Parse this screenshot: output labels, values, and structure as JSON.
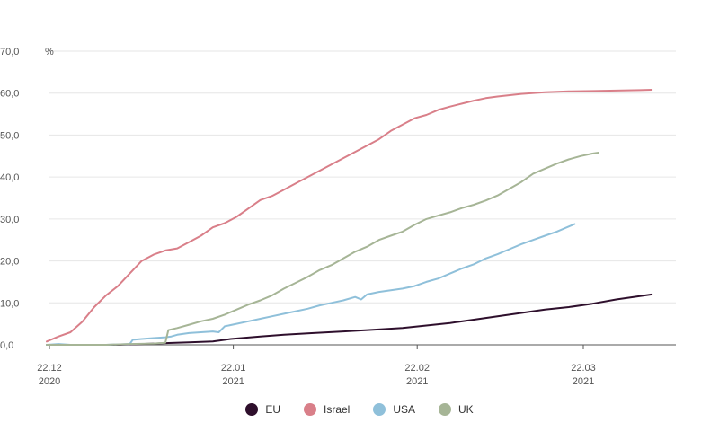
{
  "chart_data": {
    "type": "line",
    "unit_label": "%",
    "ylim": [
      0,
      70
    ],
    "yticks": [
      "0,0",
      "10,0",
      "20,0",
      "30,0",
      "40,0",
      "50,0",
      "60,0",
      "70,0"
    ],
    "xticks": [
      {
        "day": 0,
        "line1": "22.12",
        "line2": "2020"
      },
      {
        "day": 31,
        "line1": "22.01",
        "line2": "2021"
      },
      {
        "day": 62,
        "line1": "22.02",
        "line2": "2021"
      },
      {
        "day": 90,
        "line1": "22.03",
        "line2": "2021"
      }
    ],
    "xlim": [
      0,
      104
    ],
    "grid": true,
    "legend_position": "bottom-center",
    "series": [
      {
        "name": "EU",
        "color": "#2e0f2c",
        "points": [
          [
            0,
            0
          ],
          [
            4,
            0
          ],
          [
            8,
            0
          ],
          [
            12,
            0
          ],
          [
            16,
            0.2
          ],
          [
            20,
            0.4
          ],
          [
            24,
            0.6
          ],
          [
            28,
            0.8
          ],
          [
            31,
            1.4
          ],
          [
            36,
            2.0
          ],
          [
            40,
            2.4
          ],
          [
            45,
            2.8
          ],
          [
            50,
            3.2
          ],
          [
            55,
            3.6
          ],
          [
            60,
            4.0
          ],
          [
            64,
            4.6
          ],
          [
            68,
            5.2
          ],
          [
            72,
            6.0
          ],
          [
            76,
            6.8
          ],
          [
            80,
            7.6
          ],
          [
            84,
            8.4
          ],
          [
            88,
            9.0
          ],
          [
            92,
            9.8
          ],
          [
            96,
            10.8
          ],
          [
            100,
            11.6
          ],
          [
            102,
            12.0
          ]
        ]
      },
      {
        "name": "Israel",
        "color": "#d97f89",
        "points": [
          [
            0,
            0.8
          ],
          [
            2,
            2.0
          ],
          [
            4,
            3.0
          ],
          [
            6,
            5.5
          ],
          [
            8,
            9.0
          ],
          [
            10,
            11.8
          ],
          [
            12,
            14.0
          ],
          [
            14,
            17.0
          ],
          [
            16,
            20.0
          ],
          [
            18,
            21.5
          ],
          [
            20,
            22.5
          ],
          [
            22,
            23.0
          ],
          [
            24,
            24.5
          ],
          [
            26,
            26.0
          ],
          [
            28,
            28.0
          ],
          [
            30,
            29.0
          ],
          [
            32,
            30.5
          ],
          [
            34,
            32.5
          ],
          [
            36,
            34.5
          ],
          [
            38,
            35.5
          ],
          [
            40,
            37.0
          ],
          [
            42,
            38.5
          ],
          [
            44,
            40.0
          ],
          [
            46,
            41.5
          ],
          [
            48,
            43.0
          ],
          [
            50,
            44.5
          ],
          [
            52,
            46.0
          ],
          [
            54,
            47.5
          ],
          [
            56,
            49.0
          ],
          [
            58,
            51.0
          ],
          [
            60,
            52.5
          ],
          [
            62,
            54.0
          ],
          [
            64,
            54.8
          ],
          [
            66,
            56.0
          ],
          [
            68,
            56.8
          ],
          [
            70,
            57.5
          ],
          [
            72,
            58.2
          ],
          [
            74,
            58.8
          ],
          [
            76,
            59.2
          ],
          [
            80,
            59.8
          ],
          [
            84,
            60.2
          ],
          [
            88,
            60.4
          ],
          [
            92,
            60.5
          ],
          [
            96,
            60.6
          ],
          [
            100,
            60.7
          ],
          [
            102,
            60.8
          ]
        ]
      },
      {
        "name": "USA",
        "color": "#8fc0da",
        "points": [
          [
            0,
            0
          ],
          [
            2,
            0.2
          ],
          [
            4,
            0
          ],
          [
            10,
            0
          ],
          [
            14,
            0.2
          ],
          [
            14.5,
            1.2
          ],
          [
            16,
            1.4
          ],
          [
            18,
            1.6
          ],
          [
            20,
            1.8
          ],
          [
            21,
            2.0
          ],
          [
            22,
            2.4
          ],
          [
            24,
            2.8
          ],
          [
            26,
            3.0
          ],
          [
            28,
            3.2
          ],
          [
            29,
            3.0
          ],
          [
            30,
            4.4
          ],
          [
            32,
            5.0
          ],
          [
            34,
            5.6
          ],
          [
            36,
            6.2
          ],
          [
            38,
            6.8
          ],
          [
            40,
            7.4
          ],
          [
            42,
            8.0
          ],
          [
            44,
            8.6
          ],
          [
            46,
            9.4
          ],
          [
            48,
            10.0
          ],
          [
            50,
            10.6
          ],
          [
            52,
            11.4
          ],
          [
            53,
            10.8
          ],
          [
            54,
            12.0
          ],
          [
            56,
            12.6
          ],
          [
            58,
            13.0
          ],
          [
            60,
            13.4
          ],
          [
            62,
            14.0
          ],
          [
            64,
            15.0
          ],
          [
            66,
            15.8
          ],
          [
            68,
            17.0
          ],
          [
            70,
            18.2
          ],
          [
            72,
            19.2
          ],
          [
            74,
            20.6
          ],
          [
            76,
            21.6
          ],
          [
            78,
            22.8
          ],
          [
            80,
            24.0
          ],
          [
            82,
            25.0
          ],
          [
            84,
            26.0
          ],
          [
            86,
            27.0
          ],
          [
            88,
            28.2
          ],
          [
            89,
            28.8
          ]
        ]
      },
      {
        "name": "UK",
        "color": "#a6b596",
        "points": [
          [
            0,
            0
          ],
          [
            4,
            0
          ],
          [
            10,
            0
          ],
          [
            14,
            0.2
          ],
          [
            18,
            0.3
          ],
          [
            20,
            0.5
          ],
          [
            20.5,
            3.5
          ],
          [
            22,
            4.0
          ],
          [
            24,
            4.8
          ],
          [
            26,
            5.6
          ],
          [
            28,
            6.2
          ],
          [
            30,
            7.2
          ],
          [
            32,
            8.4
          ],
          [
            34,
            9.6
          ],
          [
            36,
            10.6
          ],
          [
            38,
            11.8
          ],
          [
            40,
            13.4
          ],
          [
            42,
            14.8
          ],
          [
            44,
            16.2
          ],
          [
            46,
            17.8
          ],
          [
            48,
            19.0
          ],
          [
            50,
            20.6
          ],
          [
            52,
            22.2
          ],
          [
            54,
            23.4
          ],
          [
            56,
            25.0
          ],
          [
            58,
            26.0
          ],
          [
            60,
            27.0
          ],
          [
            62,
            28.6
          ],
          [
            64,
            30.0
          ],
          [
            66,
            30.8
          ],
          [
            68,
            31.6
          ],
          [
            70,
            32.6
          ],
          [
            72,
            33.4
          ],
          [
            74,
            34.4
          ],
          [
            76,
            35.6
          ],
          [
            78,
            37.2
          ],
          [
            80,
            38.8
          ],
          [
            82,
            40.8
          ],
          [
            84,
            42.0
          ],
          [
            86,
            43.2
          ],
          [
            88,
            44.2
          ],
          [
            90,
            45.0
          ],
          [
            92,
            45.6
          ],
          [
            93,
            45.8
          ]
        ]
      }
    ]
  }
}
